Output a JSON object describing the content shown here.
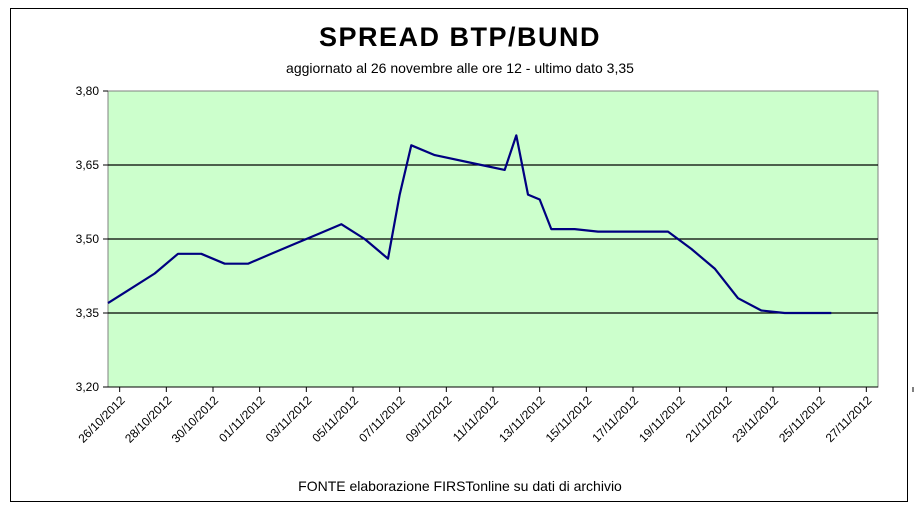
{
  "chart_data": {
    "type": "line",
    "title": "SPREAD  BTP/BUND",
    "subtitle": "aggiornato al 26 novembre alle ore 12 - ultimo dato 3,35",
    "source_note": "FONTE elaborazione FIRSTonline su dati di archivio",
    "x_tick_labels": [
      "26/10/2012",
      "28/10/2012",
      "30/10/2012",
      "01/11/2012",
      "03/11/2012",
      "05/11/2012",
      "07/11/2012",
      "09/11/2012",
      "11/11/2012",
      "13/11/2012",
      "15/11/2012",
      "17/11/2012",
      "19/11/2012",
      "21/11/2012",
      "23/11/2012",
      "25/11/2012",
      "27/11/2012"
    ],
    "y_ticks": [
      "3,20",
      "3,35",
      "3,50",
      "3,65",
      "3,80"
    ],
    "ylim": [
      3.2,
      3.8
    ],
    "grid": "horizontal",
    "line_color": "#000080",
    "plot_background": "#ccffcc",
    "series": [
      {
        "x": [
          "2012-10-26",
          "2012-10-28",
          "2012-10-29",
          "2012-10-30",
          "2012-10-31",
          "2012-11-01",
          "2012-11-02",
          "2012-11-03",
          "2012-11-04",
          "2012-11-05",
          "2012-11-06",
          "2012-11-07",
          "2012-11-07T12",
          "2012-11-08",
          "2012-11-09",
          "2012-11-11",
          "2012-11-12",
          "2012-11-12T12",
          "2012-11-13",
          "2012-11-13T12",
          "2012-11-14",
          "2012-11-15",
          "2012-11-16",
          "2012-11-17",
          "2012-11-18",
          "2012-11-19",
          "2012-11-20",
          "2012-11-21",
          "2012-11-22",
          "2012-11-23",
          "2012-11-24",
          "2012-11-25",
          "2012-11-26"
        ],
        "y": [
          3.37,
          3.43,
          3.47,
          3.47,
          3.45,
          3.45,
          3.47,
          3.49,
          3.51,
          3.53,
          3.5,
          3.46,
          3.59,
          3.69,
          3.67,
          3.65,
          3.64,
          3.71,
          3.59,
          3.58,
          3.52,
          3.52,
          3.515,
          3.515,
          3.515,
          3.515,
          3.48,
          3.44,
          3.38,
          3.355,
          3.35,
          3.35,
          3.35
        ]
      }
    ]
  }
}
